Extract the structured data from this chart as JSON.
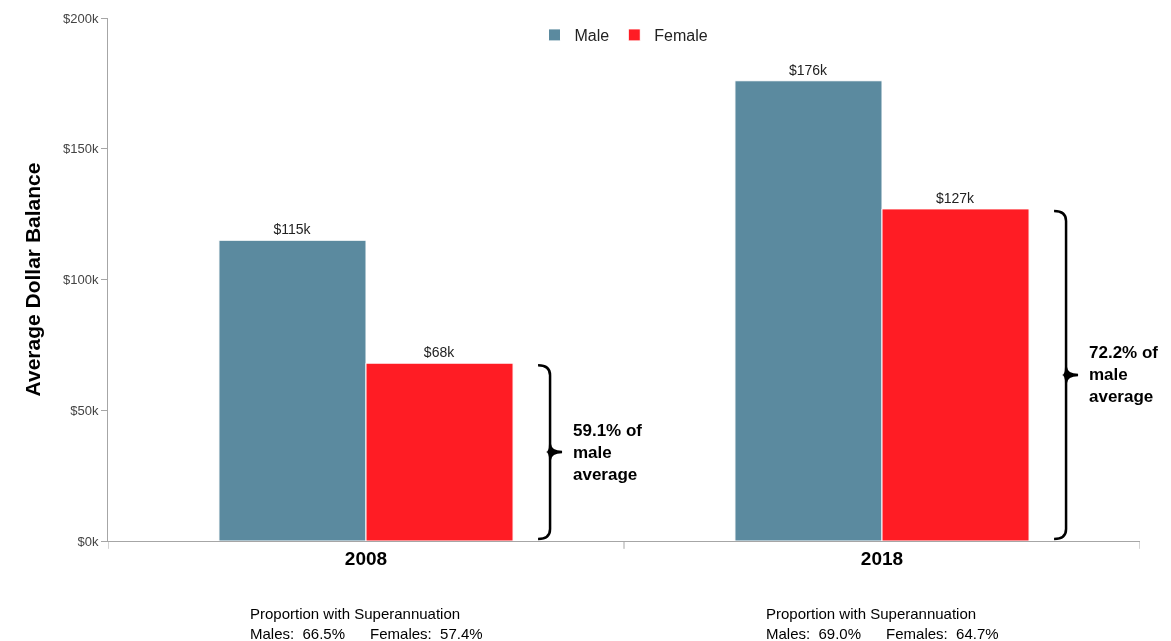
{
  "chart_data": {
    "type": "bar",
    "ylabel": "Average Dollar Balance",
    "categories": [
      "2008",
      "2018"
    ],
    "series": [
      {
        "name": "Male",
        "color": "#5b8a9f",
        "values": [
          115000,
          176000
        ],
        "value_labels": [
          "$115k",
          "$176k"
        ]
      },
      {
        "name": "Female",
        "color": "#ff1c24",
        "values": [
          68000,
          127000
        ],
        "value_labels": [
          "$68k",
          "$127k"
        ]
      }
    ],
    "ylim": [
      0,
      200000
    ],
    "yticks": [
      {
        "value": 0,
        "label": "$0k"
      },
      {
        "value": 50000,
        "label": "$50k"
      },
      {
        "value": 100000,
        "label": "$100k"
      },
      {
        "value": 150000,
        "label": "$150k"
      },
      {
        "value": 200000,
        "label": "$200k"
      }
    ],
    "grid": false,
    "legend": "top",
    "annotations": [
      "59.1% of\nmale\naverage",
      "72.2% of\nmale\naverage",
      "Proportion with Superannuation\nMales:  66.5%      Females:  57.4%",
      "Proportion with Superannuation\nMales:  69.0%      Females:  64.7%"
    ]
  }
}
